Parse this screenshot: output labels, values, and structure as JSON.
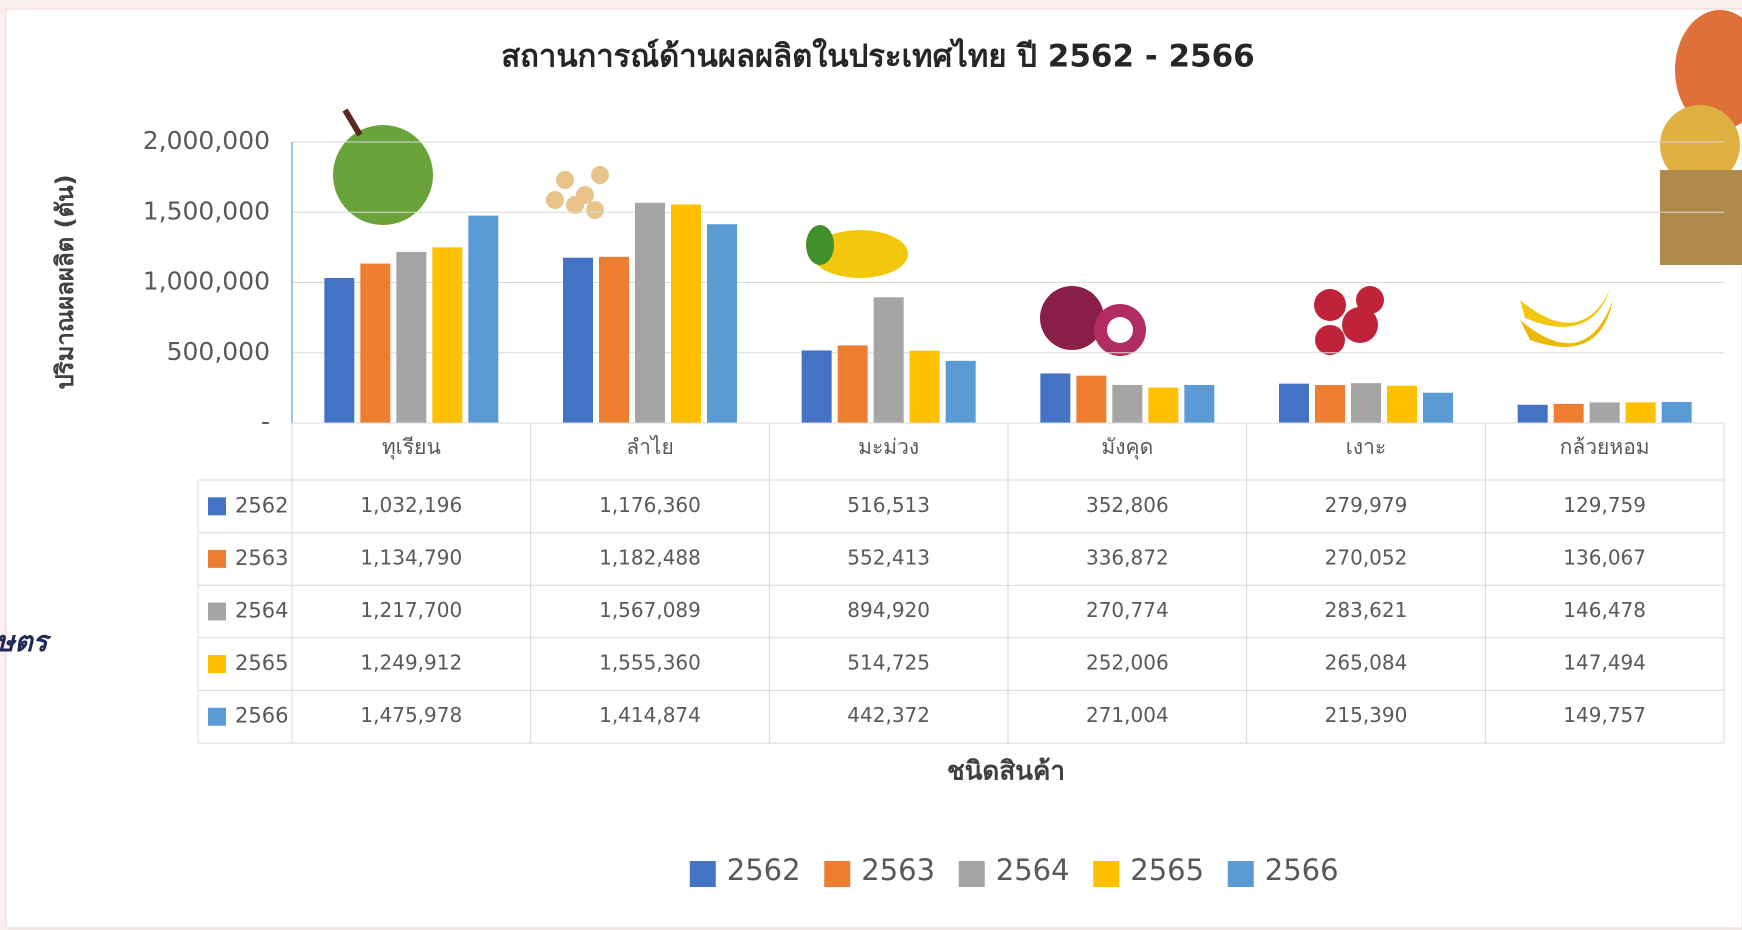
{
  "chart_data": {
    "type": "bar",
    "title": "สถานการณ์ด้านผลผลิตในประเทศไทย  ปี 2562 - 2566",
    "y_label": "ปริมาณผลผลิต (ตัน)",
    "x_label": "ชนิดสินค้า",
    "side_text": "ษตร",
    "categories": [
      "ทุเรียน",
      "ลำไย",
      "มะม่วง",
      "มังคุด",
      "เงาะ",
      "กล้วยหอม"
    ],
    "series": [
      {
        "name": "2562",
        "color": "#4472c4",
        "values": [
          1032196,
          1176360,
          516513,
          352806,
          279979,
          129759
        ],
        "value_labels": [
          "1,032,196",
          "1,176,360",
          "516,513",
          "352,806",
          "279,979",
          "129,759"
        ]
      },
      {
        "name": "2563",
        "color": "#ed7d31",
        "values": [
          1134790,
          1182488,
          552413,
          336872,
          270052,
          136067
        ],
        "value_labels": [
          "1,134,790",
          "1,182,488",
          "552,413",
          "336,872",
          "270,052",
          "136,067"
        ]
      },
      {
        "name": "2564",
        "color": "#a5a5a5",
        "values": [
          1217700,
          1567089,
          894920,
          270774,
          283621,
          146478
        ],
        "value_labels": [
          "1,217,700",
          "1,567,089",
          "894,920",
          "270,774",
          "283,621",
          "146,478"
        ]
      },
      {
        "name": "2565",
        "color": "#ffc000",
        "values": [
          1249912,
          1555360,
          514725,
          252006,
          265084,
          147494
        ],
        "value_labels": [
          "1,249,912",
          "1,555,360",
          "514,725",
          "252,006",
          "265,084",
          "147,494"
        ]
      },
      {
        "name": "2566",
        "color": "#5b9bd5",
        "values": [
          1475978,
          1414874,
          442372,
          271004,
          215390,
          149757
        ],
        "value_labels": [
          "1,475,978",
          "1,414,874",
          "442,372",
          "271,004",
          "215,390",
          "149,757"
        ]
      }
    ],
    "ylim": [
      0,
      2000000
    ],
    "yticks": [
      {
        "value": 0,
        "label": "-"
      },
      {
        "value": 500000,
        "label": "500,000"
      },
      {
        "value": 1000000,
        "label": "1,000,000"
      },
      {
        "value": 1500000,
        "label": "1,500,000"
      },
      {
        "value": 2000000,
        "label": "2,000,000"
      }
    ],
    "grid": true
  }
}
